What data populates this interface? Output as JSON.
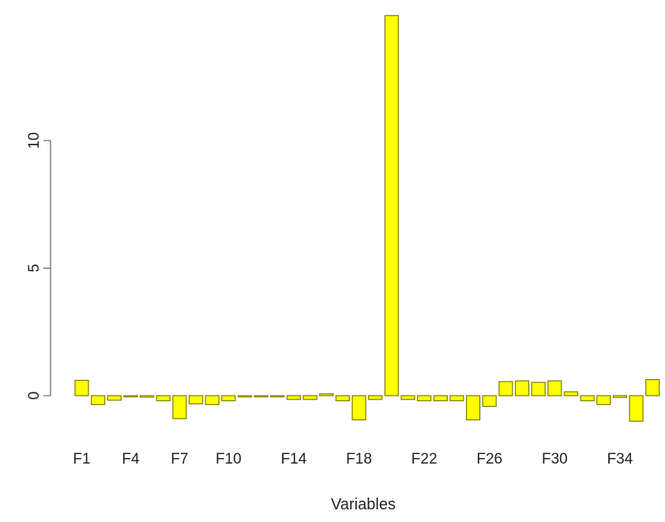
{
  "chart_data": {
    "type": "bar",
    "title": "",
    "xlabel": "Variables",
    "ylabel": "",
    "ylim": [
      -1.2,
      15.2
    ],
    "y_ticks": [
      0,
      5,
      10
    ],
    "bar_color": "#ffff00",
    "bar_border_color": "#7a7a00",
    "categories": [
      "F1",
      "F2",
      "F3",
      "F4",
      "F5",
      "F6",
      "F7",
      "F8",
      "F9",
      "F10",
      "F11",
      "F12",
      "F13",
      "F14",
      "F15",
      "F16",
      "F17",
      "F18",
      "F19",
      "F20",
      "F21",
      "F22",
      "F23",
      "F24",
      "F25",
      "F26",
      "F27",
      "F28",
      "F29",
      "F30",
      "F31",
      "F32",
      "F33",
      "F34",
      "F35",
      "F36"
    ],
    "visible_category_labels": [
      "F1",
      "F4",
      "F7",
      "F10",
      "F14",
      "F18",
      "F22",
      "F26",
      "F30",
      "F34"
    ],
    "values": [
      0.6,
      -0.35,
      -0.18,
      -0.02,
      -0.06,
      -0.2,
      -0.9,
      -0.32,
      -0.35,
      -0.2,
      -0.05,
      -0.02,
      -0.02,
      -0.15,
      -0.15,
      0.07,
      -0.2,
      -0.95,
      -0.15,
      14.9,
      -0.15,
      -0.2,
      -0.2,
      -0.2,
      -0.95,
      -0.42,
      0.55,
      0.58,
      0.52,
      0.58,
      0.15,
      -0.2,
      -0.35,
      -0.07,
      -1.0,
      0.63
    ]
  }
}
